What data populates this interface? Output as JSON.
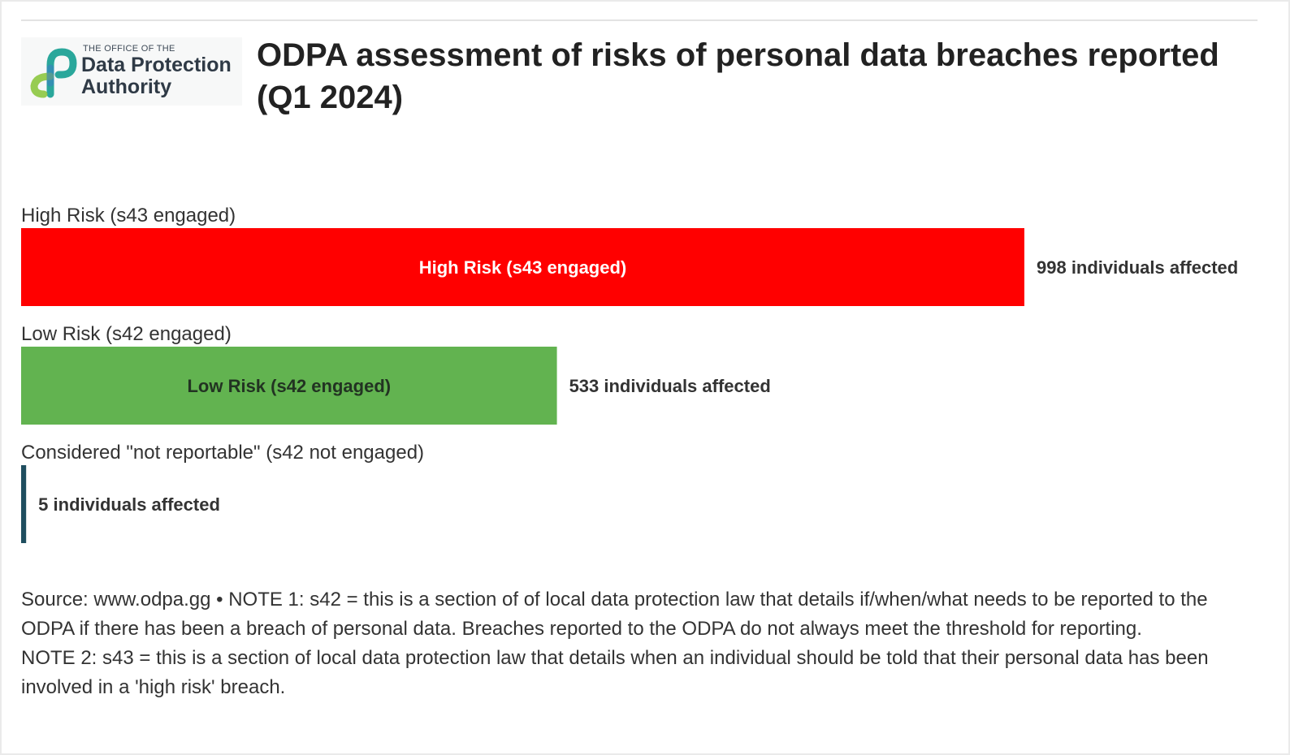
{
  "title": "ODPA assessment of risks of personal data breaches reported (Q1 2024)",
  "logo": {
    "kicker": "THE OFFICE OF THE",
    "line1": "Data Protection",
    "line2": "Authority",
    "icon": "odpa-logo-icon",
    "colors": [
      "#2aa79b",
      "#3b82c4",
      "#8cc63f"
    ]
  },
  "chart_data": {
    "type": "bar",
    "orientation": "horizontal",
    "categories": [
      "High Risk (s43 engaged)",
      "Low Risk (s42 engaged)",
      "Considered \"not reportable\" (s42 not engaged)"
    ],
    "values": [
      998,
      533,
      5
    ],
    "bar_labels": [
      "High Risk (s43 engaged)",
      "Low Risk (s42 engaged)",
      ""
    ],
    "value_labels": [
      "998 individuals affected",
      "533 individuals affected",
      "5 individuals affected"
    ],
    "colors": [
      "#ff0000",
      "#62b350",
      "#1f4e5f"
    ],
    "bar_label_colors": [
      "#ffffff",
      "#223322",
      "#ffffff"
    ],
    "xlim": [
      0,
      998
    ],
    "grid": false,
    "legend": "none"
  },
  "notes": {
    "line1": "Source: www.odpa.gg • NOTE 1: s42 = this is a section of of local data protection law that details if/when/what needs to be reported to the ODPA if there has been a breach of personal data. Breaches reported to the ODPA do not always meet the threshold for reporting.",
    "line2": "NOTE 2: s43 = this is a section of local data protection law that details when an individual should be told that their personal data has been involved in a 'high risk' breach."
  }
}
